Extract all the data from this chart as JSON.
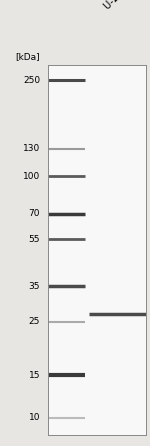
{
  "background_color": "#e8e6e3",
  "gel_bg": "#f8f8f8",
  "ylabel_text": "[kDa]",
  "ladder_labels": [
    "250",
    "130",
    "100",
    "70",
    "55",
    "35",
    "25",
    "15",
    "10"
  ],
  "ladder_colors": {
    "250": "#4a4a4a",
    "130": "#9a9a9a",
    "100": "#5a5a5a",
    "70": "#3a3a3a",
    "55": "#5a5a5a",
    "35": "#4a4a4a",
    "25": "#aaaaaa",
    "15": "#3a3a3a",
    "10": "#bbbbbb"
  },
  "ladder_thickness": {
    "250": 2.2,
    "130": 1.5,
    "100": 2.0,
    "70": 2.5,
    "55": 2.0,
    "35": 2.5,
    "25": 1.5,
    "15": 3.0,
    "10": 1.5
  },
  "sample_band_kda": 27,
  "sample_band_color": "#4a4a4a",
  "sample_band_thickness": 2.5,
  "log_scale_min": 8.5,
  "log_scale_max": 290,
  "label_fontsize": 6.5,
  "title_fontsize": 7
}
